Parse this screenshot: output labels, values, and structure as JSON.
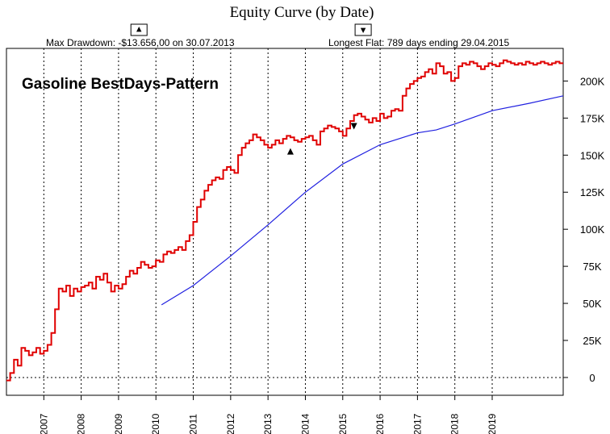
{
  "chart_data": {
    "type": "line",
    "title": "Equity Curve (by Date)",
    "subtitle_left": "Max Drawdown: -$13.656,00 on 30.07.2013",
    "subtitle_right": "Longest Flat: 789 days ending 29.04.2015",
    "annotation": "Gasoline BestDays-Pattern",
    "xlim": [
      2006.0,
      2020.9
    ],
    "ylim": [
      -12000,
      222000
    ],
    "x_ticks": [
      {
        "value": 2007.0,
        "label": "2007"
      },
      {
        "value": 2008.0,
        "label": "2008"
      },
      {
        "value": 2009.0,
        "label": "2009"
      },
      {
        "value": 2010.0,
        "label": "2010"
      },
      {
        "value": 2011.0,
        "label": "2011"
      },
      {
        "value": 2012.0,
        "label": "2012"
      },
      {
        "value": 2013.0,
        "label": "2013"
      },
      {
        "value": 2014.0,
        "label": "2014"
      },
      {
        "value": 2015.0,
        "label": "2015"
      },
      {
        "value": 2016.0,
        "label": "2016"
      },
      {
        "value": 2017.0,
        "label": "2017"
      },
      {
        "value": 2018.0,
        "label": "2018"
      },
      {
        "value": 2019.0,
        "label": "2019"
      }
    ],
    "y_ticks": [
      {
        "value": 0,
        "label": "0"
      },
      {
        "value": 25000,
        "label": "25K"
      },
      {
        "value": 50000,
        "label": "50K"
      },
      {
        "value": 75000,
        "label": "75K"
      },
      {
        "value": 100000,
        "label": "100K"
      },
      {
        "value": 125000,
        "label": "125K"
      },
      {
        "value": 150000,
        "label": "150K"
      },
      {
        "value": 175000,
        "label": "175K"
      },
      {
        "value": 200000,
        "label": "200K"
      }
    ],
    "grid": {
      "vertical": "dotted",
      "zero_line": "dotted"
    },
    "series": [
      {
        "color": "#e00000",
        "style": "step",
        "x": [
          2006.0,
          2006.1,
          2006.2,
          2006.3,
          2006.4,
          2006.5,
          2006.6,
          2006.7,
          2006.8,
          2006.9,
          2007.0,
          2007.1,
          2007.2,
          2007.3,
          2007.4,
          2007.5,
          2007.6,
          2007.7,
          2007.8,
          2007.9,
          2008.0,
          2008.1,
          2008.2,
          2008.3,
          2008.4,
          2008.5,
          2008.6,
          2008.7,
          2008.8,
          2008.9,
          2009.0,
          2009.1,
          2009.2,
          2009.3,
          2009.4,
          2009.5,
          2009.6,
          2009.7,
          2009.8,
          2009.9,
          2010.0,
          2010.1,
          2010.2,
          2010.3,
          2010.4,
          2010.5,
          2010.6,
          2010.7,
          2010.8,
          2010.9,
          2011.0,
          2011.1,
          2011.2,
          2011.3,
          2011.4,
          2011.5,
          2011.6,
          2011.7,
          2011.8,
          2011.9,
          2012.0,
          2012.1,
          2012.2,
          2012.3,
          2012.4,
          2012.5,
          2012.6,
          2012.7,
          2012.8,
          2012.9,
          2013.0,
          2013.1,
          2013.2,
          2013.3,
          2013.4,
          2013.5,
          2013.6,
          2013.7,
          2013.8,
          2013.9,
          2014.0,
          2014.1,
          2014.2,
          2014.3,
          2014.4,
          2014.5,
          2014.6,
          2014.7,
          2014.8,
          2014.9,
          2015.0,
          2015.1,
          2015.2,
          2015.3,
          2015.4,
          2015.5,
          2015.6,
          2015.7,
          2015.8,
          2015.9,
          2016.0,
          2016.1,
          2016.2,
          2016.3,
          2016.4,
          2016.5,
          2016.6,
          2016.7,
          2016.8,
          2016.9,
          2017.0,
          2017.1,
          2017.2,
          2017.3,
          2017.4,
          2017.5,
          2017.6,
          2017.7,
          2017.8,
          2017.9,
          2018.0,
          2018.1,
          2018.2,
          2018.3,
          2018.4,
          2018.5,
          2018.6,
          2018.7,
          2018.8,
          2018.9,
          2019.0,
          2019.1,
          2019.2,
          2019.3,
          2019.4,
          2019.5,
          2019.6,
          2019.7,
          2019.8,
          2019.9,
          2020.0,
          2020.1,
          2020.2,
          2020.3,
          2020.4,
          2020.5,
          2020.6,
          2020.7,
          2020.8,
          2020.9
        ],
        "y": [
          -2000,
          3000,
          12000,
          8000,
          20000,
          18000,
          15000,
          17000,
          20000,
          16000,
          18000,
          22000,
          30000,
          46000,
          60000,
          58000,
          62000,
          55000,
          60000,
          58000,
          61000,
          62000,
          64000,
          60000,
          68000,
          66000,
          70000,
          64000,
          58000,
          62000,
          60000,
          63000,
          68000,
          72000,
          70000,
          74000,
          78000,
          76000,
          74000,
          75000,
          79000,
          78000,
          83000,
          85000,
          84000,
          86000,
          88000,
          86000,
          92000,
          96000,
          105000,
          115000,
          120000,
          126000,
          130000,
          133000,
          135000,
          134000,
          140000,
          142000,
          140000,
          138000,
          150000,
          155000,
          158000,
          160000,
          164000,
          162000,
          160000,
          157000,
          155000,
          157000,
          160000,
          158000,
          161000,
          163000,
          162000,
          160000,
          159000,
          161000,
          162000,
          163000,
          160000,
          157000,
          166000,
          168000,
          170000,
          169000,
          168000,
          166000,
          163000,
          168000,
          173000,
          177000,
          178000,
          176000,
          174000,
          172000,
          175000,
          173000,
          178000,
          175000,
          176000,
          180000,
          181000,
          180000,
          190000,
          195000,
          198000,
          200000,
          202000,
          203000,
          206000,
          208000,
          205000,
          212000,
          210000,
          205000,
          206000,
          200000,
          202000,
          210000,
          212000,
          211000,
          213000,
          212000,
          210000,
          208000,
          210000,
          212000,
          211000,
          210000,
          212000,
          214000,
          213000,
          212000,
          211000,
          212000,
          211000,
          213000,
          212000,
          211000,
          212000,
          213000,
          212000,
          211000,
          212000,
          213000,
          212000,
          212000
        ]
      },
      {
        "color": "#2020e0",
        "style": "line",
        "x": [
          2010.15,
          2011.0,
          2012.0,
          2013.0,
          2014.0,
          2015.0,
          2016.0,
          2017.0,
          2017.5,
          2018.0,
          2019.0,
          2020.0,
          2020.9
        ],
        "y": [
          49000,
          62000,
          82000,
          103000,
          125000,
          144000,
          157000,
          165000,
          167000,
          171000,
          180000,
          185000,
          190000
        ]
      }
    ],
    "markers": [
      {
        "shape": "triangle-up",
        "x": 2013.6,
        "y": 152000
      },
      {
        "shape": "triangle-down",
        "x": 2015.3,
        "y": 170000
      }
    ],
    "header_markers": [
      {
        "shape": "triangle-up",
        "x": 2010.0
      },
      {
        "shape": "triangle-down",
        "x": 2016.0
      }
    ]
  }
}
